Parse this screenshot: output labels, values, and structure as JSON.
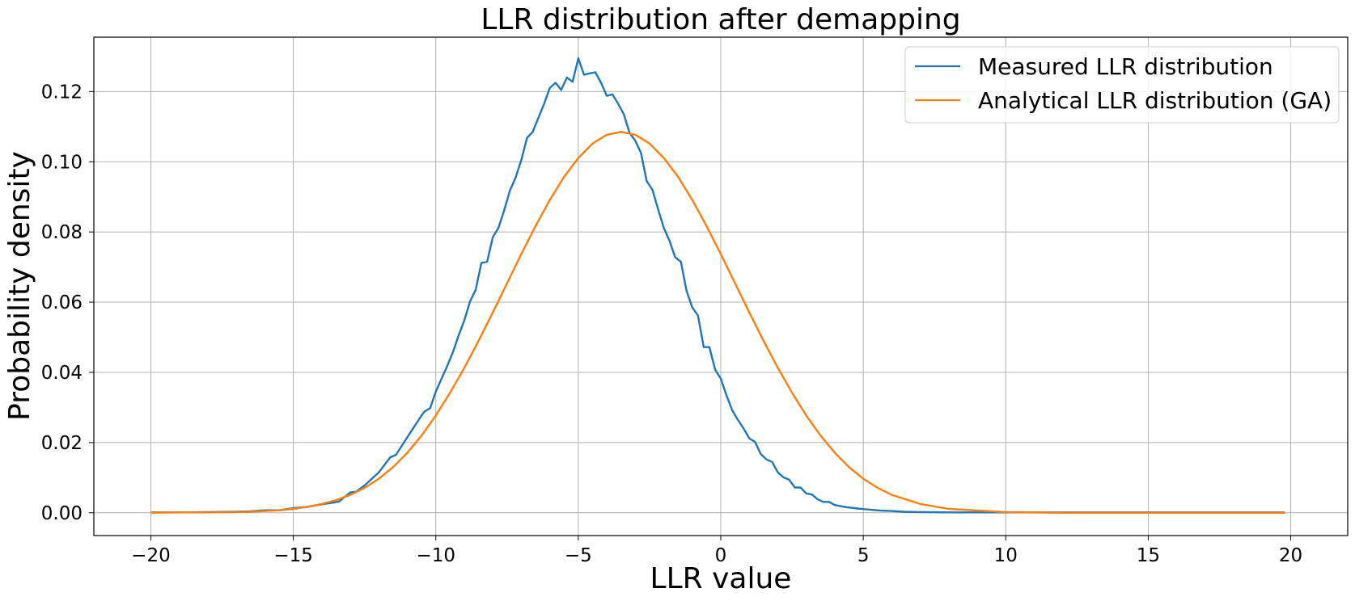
{
  "chart_data": {
    "type": "line",
    "title": "LLR distribution after demapping",
    "xlabel": "LLR value",
    "ylabel": "Probability density",
    "xlim": [
      -22,
      22
    ],
    "ylim": [
      -0.0065,
      0.1355
    ],
    "xticks": [
      -20,
      -15,
      -10,
      -5,
      0,
      5,
      10,
      15,
      20
    ],
    "xtick_labels": [
      "−20",
      "−15",
      "−10",
      "−5",
      "0",
      "5",
      "10",
      "15",
      "20"
    ],
    "yticks": [
      0.0,
      0.02,
      0.04,
      0.06,
      0.08,
      0.1,
      0.12
    ],
    "ytick_labels": [
      "0.00",
      "0.02",
      "0.04",
      "0.06",
      "0.08",
      "0.10",
      "0.12"
    ],
    "grid": true,
    "legend_position": "top-right",
    "series": [
      {
        "name": "Measured LLR distribution",
        "color": "#1f77b4",
        "x": [
          -20,
          -19,
          -18,
          -17,
          -16.5,
          -16,
          -15.5,
          -15,
          -14.5,
          -14,
          -13.6,
          -13.4,
          -13,
          -12.8,
          -12.5,
          -12,
          -11.6,
          -11.4,
          -11,
          -10.6,
          -10.4,
          -10.2,
          -10,
          -9.6,
          -9.4,
          -9.2,
          -9,
          -8.8,
          -8.6,
          -8.4,
          -8.2,
          -8,
          -7.8,
          -7.6,
          -7.4,
          -7.2,
          -7,
          -6.8,
          -6.6,
          -6.4,
          -6.2,
          -6,
          -5.8,
          -5.6,
          -5.4,
          -5.2,
          -5,
          -4.8,
          -4.6,
          -4.4,
          -4.2,
          -4,
          -3.8,
          -3.6,
          -3.4,
          -3.2,
          -3,
          -2.8,
          -2.6,
          -2.4,
          -2.2,
          -2,
          -1.8,
          -1.6,
          -1.4,
          -1.2,
          -1,
          -0.8,
          -0.6,
          -0.4,
          -0.2,
          0,
          0.2,
          0.4,
          0.6,
          0.8,
          1,
          1.2,
          1.4,
          1.6,
          1.8,
          2,
          2.2,
          2.4,
          2.6,
          2.8,
          3,
          3.2,
          3.4,
          3.6,
          3.8,
          4,
          4.4,
          4.8,
          5.2,
          5.6,
          6,
          6.4,
          7,
          8,
          9,
          10,
          12,
          14,
          16,
          18,
          19.8
        ],
        "values": [
          0.0001,
          0.0001,
          0.0002,
          0.0003,
          0.0004,
          0.0007,
          0.0007,
          0.0013,
          0.0017,
          0.0024,
          0.0029,
          0.0032,
          0.0058,
          0.006,
          0.0078,
          0.0115,
          0.0158,
          0.0165,
          0.0215,
          0.0265,
          0.0288,
          0.0298,
          0.0345,
          0.0418,
          0.0458,
          0.0505,
          0.0548,
          0.0602,
          0.0635,
          0.0712,
          0.0715,
          0.0785,
          0.0812,
          0.0862,
          0.0918,
          0.0955,
          0.1005,
          0.1068,
          0.1085,
          0.1125,
          0.1165,
          0.121,
          0.1225,
          0.1205,
          0.124,
          0.1228,
          0.1295,
          0.1248,
          0.1252,
          0.1255,
          0.1225,
          0.1188,
          0.1192,
          0.1165,
          0.1135,
          0.1082,
          0.106,
          0.1025,
          0.0945,
          0.092,
          0.0865,
          0.0812,
          0.0775,
          0.0728,
          0.0715,
          0.0632,
          0.0585,
          0.0562,
          0.0472,
          0.0472,
          0.0408,
          0.0382,
          0.0335,
          0.0292,
          0.0265,
          0.024,
          0.0212,
          0.0202,
          0.0168,
          0.0152,
          0.0145,
          0.0115,
          0.0101,
          0.0094,
          0.0072,
          0.0072,
          0.0055,
          0.0052,
          0.0038,
          0.0031,
          0.0031,
          0.0022,
          0.0016,
          0.0012,
          0.0009,
          0.0006,
          0.0005,
          0.0003,
          0.0002,
          0.0001,
          0.0001,
          0.0001,
          0.0001,
          0.0001,
          0.0001,
          0.0001,
          0.0001
        ]
      },
      {
        "name": "Analytical LLR distribution (GA)",
        "color": "#ff7f0e",
        "x": [
          -20,
          -19,
          -18,
          -17,
          -16.5,
          -16,
          -15.5,
          -15,
          -14.5,
          -14,
          -13.5,
          -13,
          -12.5,
          -12,
          -11.5,
          -11,
          -10.5,
          -10,
          -9.5,
          -9,
          -8.5,
          -8,
          -7.5,
          -7,
          -6.5,
          -6,
          -5.5,
          -5,
          -4.5,
          -4,
          -3.5,
          -3,
          -2.5,
          -2,
          -1.5,
          -1,
          -0.5,
          0,
          0.5,
          1,
          1.5,
          2,
          2.5,
          3,
          3.5,
          4,
          4.5,
          5,
          5.5,
          6,
          7,
          8,
          10,
          12,
          14,
          16,
          18,
          19.8
        ],
        "values": [
          0.0,
          0.0001,
          0.0001,
          0.0002,
          0.0003,
          0.0005,
          0.0007,
          0.0011,
          0.0017,
          0.0025,
          0.0036,
          0.0051,
          0.0071,
          0.0097,
          0.013,
          0.0171,
          0.022,
          0.0277,
          0.0342,
          0.0413,
          0.049,
          0.0571,
          0.0654,
          0.0737,
          0.0817,
          0.0891,
          0.0957,
          0.1011,
          0.1052,
          0.1077,
          0.1085,
          0.1077,
          0.1052,
          0.1011,
          0.0957,
          0.0891,
          0.0817,
          0.0737,
          0.0654,
          0.0571,
          0.049,
          0.0413,
          0.0342,
          0.0277,
          0.022,
          0.0171,
          0.013,
          0.0097,
          0.0071,
          0.0051,
          0.0025,
          0.0011,
          0.0002,
          0.0,
          0.0,
          0.0,
          0.0,
          0.0
        ]
      }
    ]
  }
}
